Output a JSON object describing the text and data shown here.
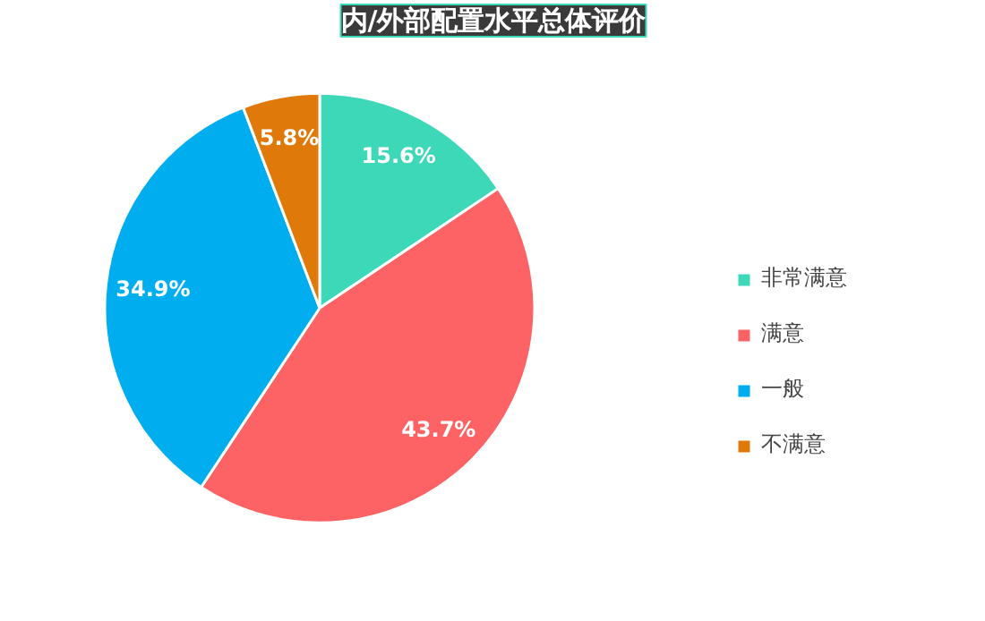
{
  "chart_data": {
    "type": "pie",
    "title": "内/外部配置水平总体评价",
    "categories": [
      "非常满意",
      "满意",
      "一般",
      "不满意"
    ],
    "values": [
      15.6,
      43.7,
      34.9,
      5.8
    ],
    "colors": [
      "#3dd8b8",
      "#fd6265",
      "#00adee",
      "#df7a0a"
    ],
    "value_labels": [
      "15.6%",
      "43.7%",
      "34.9%",
      "5.8%"
    ],
    "legend": "right"
  }
}
